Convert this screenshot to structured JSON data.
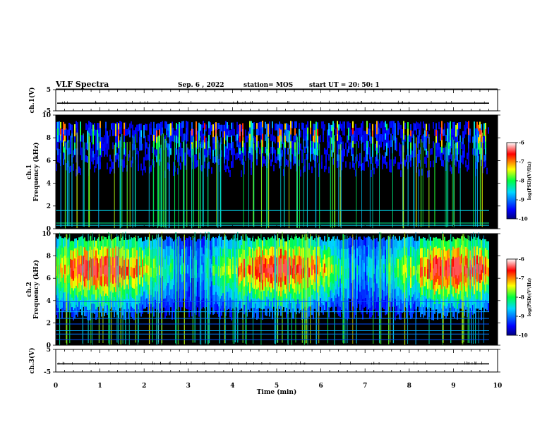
{
  "header": {
    "title": "VLF Spectra",
    "date": "Sep. 6 , 2022",
    "station": "station= MOS",
    "start": "start  UT =   20: 50: 1"
  },
  "chart_data": [
    {
      "type": "line",
      "name": "ch1-waveform",
      "ylabel": "ch.1(V)",
      "ylim": [
        -5,
        5
      ],
      "y_ticks": [
        "5",
        "-5"
      ],
      "xlim": [
        0,
        10
      ],
      "baseline": -1.4
    },
    {
      "type": "heatmap",
      "name": "ch1-spectrogram",
      "ylabel_line1": "ch.1",
      "ylabel_line2": "Frequency (kHz)",
      "ylim": [
        0,
        10
      ],
      "y_ticks": [
        "0",
        "2",
        "4",
        "6",
        "8",
        "10"
      ],
      "xlim": [
        0,
        10
      ],
      "band_kHz": [
        4.5,
        9.5
      ],
      "band_peak_kHz": 8.5,
      "narrowband_lines_kHz": [
        0.3,
        0.5,
        1.6
      ],
      "colorbar": {
        "label": "log(PSD)(V²/Hz)",
        "ticks": [
          "-6",
          "-7",
          "-8",
          "-9",
          "-10"
        ],
        "range": [
          -10,
          -6
        ]
      }
    },
    {
      "type": "heatmap",
      "name": "ch2-spectrogram",
      "ylabel_line1": "ch.2",
      "ylabel_line2": "Frequency (kHz)",
      "ylim": [
        0,
        10
      ],
      "y_ticks": [
        "0",
        "2",
        "4",
        "6",
        "8",
        "10"
      ],
      "xlim": [
        0,
        10
      ],
      "band_kHz": [
        3.5,
        9.8
      ],
      "band_peak_kHz": 6.8,
      "narrowband_lines_kHz": [
        0.5,
        1.0,
        1.3,
        1.9,
        2.4,
        3.0,
        3.9
      ],
      "colorbar": {
        "label": "log(PSD)(V²/Hz)",
        "ticks": [
          "-6",
          "-7",
          "-8",
          "-9",
          "-10"
        ],
        "range": [
          -10,
          -6
        ]
      }
    },
    {
      "type": "line",
      "name": "ch3-waveform",
      "ylabel": "ch.3(V)",
      "ylim": [
        -5,
        5
      ],
      "y_ticks": [
        "5",
        "-5"
      ],
      "xlim": [
        0,
        10
      ],
      "baseline": -1.4,
      "xlabel": "Time  (min)",
      "x_ticks": [
        "0",
        "1",
        "2",
        "3",
        "4",
        "5",
        "6",
        "7",
        "8",
        "9",
        "10"
      ]
    }
  ]
}
